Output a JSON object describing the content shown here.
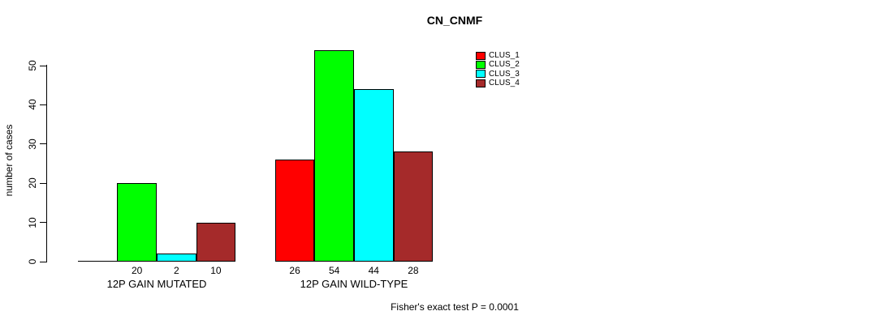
{
  "chart_data": {
    "type": "bar",
    "title": "CN_CNMF",
    "ylabel": "number of cases",
    "xlabel": "",
    "ylim": [
      0,
      50
    ],
    "yticks": [
      0,
      10,
      20,
      30,
      40,
      50
    ],
    "grid": false,
    "legend_position": "top-right",
    "categories": [
      "12P GAIN MUTATED",
      "12P GAIN WILD-TYPE"
    ],
    "series": [
      {
        "name": "CLUS_1",
        "color": "#FF0000",
        "values": [
          0,
          26
        ]
      },
      {
        "name": "CLUS_2",
        "color": "#00FF00",
        "values": [
          20,
          54
        ]
      },
      {
        "name": "CLUS_3",
        "color": "#00FFFF",
        "values": [
          2,
          44
        ]
      },
      {
        "name": "CLUS_4",
        "color": "#A52A2A",
        "values": [
          10,
          28
        ]
      }
    ],
    "bar_value_labels": [
      [
        "",
        "20",
        "2",
        "10"
      ],
      [
        "26",
        "54",
        "44",
        "28"
      ]
    ],
    "footnote": "Fisher's exact test P = 0.0001"
  },
  "colors": {
    "background": "#FFFFFF",
    "axis": "#000000",
    "text": "#000000"
  }
}
